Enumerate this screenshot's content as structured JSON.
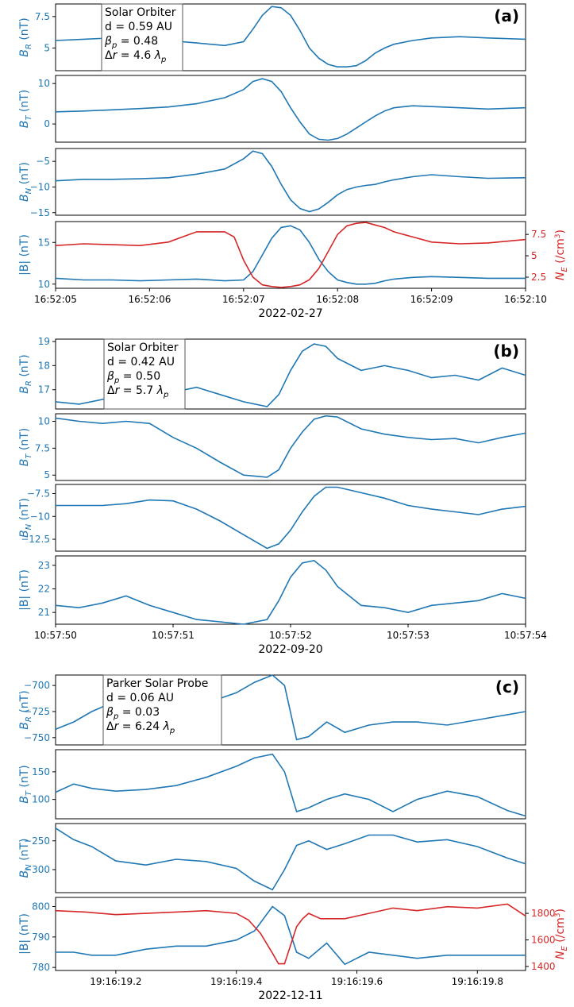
{
  "chart_data": [
    {
      "type": "line",
      "panel_label": "(a)",
      "date_label": "2022-02-27",
      "annotation": [
        "Solar Orbiter",
        "d = 0.59 AU",
        "βp = 0.48",
        "Δr = 4.6 λp"
      ],
      "x_ticks": [
        "16:52:05",
        "16:52:06",
        "16:52:07",
        "16:52:08",
        "16:52:09",
        "16:52:10"
      ],
      "x_range": [
        0,
        5
      ],
      "colors": {
        "B": "#1f77b4",
        "NE": "#d62728"
      },
      "subplots": [
        {
          "ylabel": "B_R (nT)",
          "yticks": [
            5.0,
            7.5
          ],
          "ylim": [
            3.2,
            8.5
          ],
          "series": {
            "x": [
              0,
              0.3,
              0.6,
              0.9,
              1.2,
              1.5,
              1.8,
              2.0,
              2.1,
              2.2,
              2.3,
              2.4,
              2.5,
              2.6,
              2.7,
              2.8,
              2.9,
              3.0,
              3.1,
              3.2,
              3.3,
              3.4,
              3.5,
              3.6,
              3.8,
              4.0,
              4.3,
              4.6,
              5.0
            ],
            "y": [
              5.6,
              5.7,
              5.8,
              5.8,
              5.6,
              5.4,
              5.2,
              5.5,
              6.5,
              7.6,
              8.3,
              8.2,
              7.6,
              6.4,
              5.0,
              4.2,
              3.7,
              3.5,
              3.5,
              3.6,
              4.0,
              4.6,
              5.0,
              5.3,
              5.6,
              5.8,
              5.9,
              5.8,
              5.7
            ]
          }
        },
        {
          "ylabel": "B_T (nT)",
          "yticks": [
            0,
            10
          ],
          "ylim": [
            -4.5,
            12
          ],
          "series": {
            "x": [
              0,
              0.3,
              0.6,
              0.9,
              1.2,
              1.5,
              1.8,
              2.0,
              2.1,
              2.2,
              2.3,
              2.4,
              2.5,
              2.6,
              2.7,
              2.8,
              2.9,
              3.0,
              3.1,
              3.2,
              3.3,
              3.4,
              3.5,
              3.6,
              3.8,
              4.0,
              4.3,
              4.6,
              5.0
            ],
            "y": [
              3.0,
              3.2,
              3.5,
              3.8,
              4.2,
              5.0,
              6.5,
              8.5,
              10.5,
              11.2,
              10.5,
              8.0,
              4.0,
              0.5,
              -2.5,
              -3.8,
              -4.0,
              -3.6,
              -2.5,
              -1.0,
              0.5,
              2.0,
              3.2,
              4.0,
              4.5,
              4.3,
              4.0,
              3.7,
              4.0
            ]
          }
        },
        {
          "ylabel": "B_N (nT)",
          "yticks": [
            -15,
            -10,
            -5
          ],
          "ylim": [
            -15.5,
            -2.5
          ],
          "series": {
            "x": [
              0,
              0.3,
              0.6,
              0.9,
              1.2,
              1.5,
              1.8,
              2.0,
              2.1,
              2.2,
              2.3,
              2.4,
              2.5,
              2.6,
              2.7,
              2.8,
              2.9,
              3.0,
              3.1,
              3.2,
              3.3,
              3.4,
              3.5,
              3.6,
              3.8,
              4.0,
              4.3,
              4.6,
              5.0
            ],
            "y": [
              -8.8,
              -8.5,
              -8.5,
              -8.4,
              -8.2,
              -7.5,
              -6.5,
              -4.5,
              -3.0,
              -3.5,
              -6.0,
              -9.5,
              -12.5,
              -14.2,
              -14.8,
              -14.3,
              -13.0,
              -11.5,
              -10.5,
              -10.0,
              -9.7,
              -9.5,
              -9.0,
              -8.6,
              -8.0,
              -7.6,
              -8.0,
              -8.3,
              -8.2
            ]
          }
        },
        {
          "ylabel": "|B| (nT)",
          "yticks": [
            10,
            15
          ],
          "ylim": [
            9.5,
            17.5
          ],
          "series": {
            "x": [
              0,
              0.3,
              0.6,
              0.9,
              1.2,
              1.5,
              1.8,
              2.0,
              2.1,
              2.2,
              2.3,
              2.4,
              2.5,
              2.6,
              2.7,
              2.8,
              2.9,
              3.0,
              3.1,
              3.2,
              3.3,
              3.4,
              3.5,
              3.6,
              3.8,
              4.0,
              4.3,
              4.6,
              5.0
            ],
            "y": [
              10.7,
              10.5,
              10.5,
              10.4,
              10.5,
              10.6,
              10.4,
              10.5,
              11.5,
              13.5,
              15.5,
              16.8,
              17.0,
              16.5,
              15.0,
              13.0,
              11.5,
              10.5,
              10.2,
              10.0,
              10.0,
              10.1,
              10.4,
              10.6,
              10.8,
              10.9,
              10.8,
              10.7,
              10.7
            ]
          },
          "right_axis": {
            "ylabel": "N_E (/cm³)",
            "yticks": [
              2.5,
              5.0,
              7.5
            ],
            "ylim": [
              1.2,
              9.0
            ],
            "series": {
              "x": [
                0,
                0.3,
                0.6,
                0.9,
                1.2,
                1.5,
                1.8,
                1.9,
                2.0,
                2.1,
                2.2,
                2.3,
                2.4,
                2.5,
                2.6,
                2.7,
                2.8,
                2.9,
                3.0,
                3.1,
                3.2,
                3.3,
                3.4,
                3.5,
                3.6,
                3.8,
                4.0,
                4.3,
                4.6,
                5.0
              ],
              "y": [
                6.2,
                6.4,
                6.3,
                6.2,
                6.6,
                7.8,
                7.8,
                7.2,
                4.5,
                2.5,
                1.6,
                1.4,
                1.3,
                1.4,
                1.6,
                2.2,
                3.5,
                5.5,
                7.5,
                8.5,
                8.8,
                8.9,
                8.6,
                8.3,
                7.8,
                7.2,
                6.6,
                6.4,
                6.5,
                6.9
              ]
            }
          }
        }
      ]
    },
    {
      "type": "line",
      "panel_label": "(b)",
      "date_label": "2022-09-20",
      "annotation": [
        "Solar Orbiter",
        "d = 0.42 AU",
        "βp = 0.50",
        "Δr = 5.7 λp"
      ],
      "x_ticks": [
        "10:57:50",
        "10:57:51",
        "10:57:52",
        "10:57:53",
        "10:57:54"
      ],
      "x_range": [
        0,
        4
      ],
      "colors": {
        "B": "#1f77b4"
      },
      "subplots": [
        {
          "ylabel": "B_R (nT)",
          "yticks": [
            17,
            18,
            19
          ],
          "ylim": [
            16.2,
            19.1
          ],
          "series": {
            "x": [
              0,
              0.2,
              0.4,
              0.6,
              0.8,
              1.0,
              1.2,
              1.4,
              1.6,
              1.8,
              1.9,
              2.0,
              2.1,
              2.2,
              2.3,
              2.4,
              2.6,
              2.8,
              3.0,
              3.2,
              3.4,
              3.6,
              3.8,
              4.0
            ],
            "y": [
              16.5,
              16.4,
              16.6,
              16.8,
              17.0,
              16.9,
              17.1,
              16.8,
              16.5,
              16.3,
              16.8,
              17.8,
              18.6,
              18.9,
              18.8,
              18.3,
              17.8,
              18.0,
              17.8,
              17.5,
              17.6,
              17.4,
              17.9,
              17.6
            ]
          }
        },
        {
          "ylabel": "B_T (nT)",
          "yticks": [
            5.0,
            7.5,
            10.0
          ],
          "ylim": [
            4.5,
            10.7
          ],
          "series": {
            "x": [
              0,
              0.2,
              0.4,
              0.6,
              0.8,
              1.0,
              1.2,
              1.4,
              1.6,
              1.8,
              1.9,
              2.0,
              2.1,
              2.2,
              2.3,
              2.4,
              2.6,
              2.8,
              3.0,
              3.2,
              3.4,
              3.6,
              3.8,
              4.0
            ],
            "y": [
              10.3,
              10.0,
              9.8,
              10.0,
              9.8,
              8.5,
              7.5,
              6.2,
              5.0,
              4.8,
              5.5,
              7.5,
              9.0,
              10.2,
              10.5,
              10.4,
              9.3,
              8.8,
              8.5,
              8.3,
              8.4,
              8.0,
              8.5,
              8.9
            ]
          }
        },
        {
          "ylabel": "B_N (nT)",
          "yticks": [
            -12.5,
            -10.0,
            -7.5
          ],
          "ylim": [
            -13.8,
            -6.5
          ],
          "series": {
            "x": [
              0,
              0.2,
              0.4,
              0.6,
              0.8,
              1.0,
              1.2,
              1.4,
              1.6,
              1.8,
              1.9,
              2.0,
              2.1,
              2.2,
              2.3,
              2.4,
              2.6,
              2.8,
              3.0,
              3.2,
              3.4,
              3.6,
              3.8,
              4.0
            ],
            "y": [
              -8.8,
              -8.8,
              -8.8,
              -8.6,
              -8.2,
              -8.3,
              -9.2,
              -10.5,
              -12.0,
              -13.5,
              -13.0,
              -11.5,
              -9.5,
              -7.8,
              -6.8,
              -6.8,
              -7.4,
              -8.0,
              -8.8,
              -9.2,
              -9.5,
              -9.8,
              -9.2,
              -8.9
            ]
          }
        },
        {
          "ylabel": "|B| (nT)",
          "yticks": [
            21,
            22,
            23
          ],
          "ylim": [
            20.5,
            23.4
          ],
          "series": {
            "x": [
              0,
              0.2,
              0.4,
              0.6,
              0.8,
              1.0,
              1.2,
              1.4,
              1.6,
              1.8,
              1.9,
              2.0,
              2.1,
              2.2,
              2.3,
              2.4,
              2.6,
              2.8,
              3.0,
              3.2,
              3.4,
              3.6,
              3.8,
              4.0
            ],
            "y": [
              21.3,
              21.2,
              21.4,
              21.7,
              21.3,
              21.0,
              20.7,
              20.6,
              20.5,
              20.7,
              21.5,
              22.5,
              23.1,
              23.2,
              22.8,
              22.1,
              21.3,
              21.2,
              21.0,
              21.3,
              21.4,
              21.5,
              21.8,
              21.6
            ]
          }
        }
      ]
    },
    {
      "type": "line",
      "panel_label": "(c)",
      "date_label": "2022-12-11",
      "annotation": [
        "Parker Solar Probe",
        "d = 0.06 AU",
        "βp = 0.03",
        "Δr = 6.24 λp"
      ],
      "x_ticks": [
        "19:16:19.2",
        "19:16:19.4",
        "19:16:19.6",
        "19:16:19.8"
      ],
      "x_tick_values": [
        0.1,
        0.3,
        0.5,
        0.7
      ],
      "x_range": [
        0,
        0.78
      ],
      "colors": {
        "B": "#1f77b4",
        "NE": "#d62728"
      },
      "subplots": [
        {
          "ylabel": "B_R (nT)",
          "yticks": [
            -750,
            -725,
            -700
          ],
          "ylim": [
            -757,
            -690
          ],
          "series": {
            "x": [
              0,
              0.03,
              0.06,
              0.1,
              0.15,
              0.2,
              0.25,
              0.3,
              0.33,
              0.36,
              0.38,
              0.4,
              0.42,
              0.45,
              0.48,
              0.52,
              0.56,
              0.6,
              0.65,
              0.7,
              0.75,
              0.78
            ],
            "y": [
              -742,
              -735,
              -725,
              -715,
              -718,
              -722,
              -717,
              -707,
              -697,
              -690,
              -700,
              -752,
              -749,
              -735,
              -745,
              -738,
              -735,
              -735,
              -738,
              -733,
              -728,
              -725
            ]
          }
        },
        {
          "ylabel": "B_T (nT)",
          "yticks": [
            100,
            150
          ],
          "ylim": [
            65,
            190
          ],
          "series": {
            "x": [
              0,
              0.03,
              0.06,
              0.1,
              0.15,
              0.2,
              0.25,
              0.3,
              0.33,
              0.36,
              0.38,
              0.4,
              0.42,
              0.45,
              0.48,
              0.52,
              0.56,
              0.6,
              0.65,
              0.7,
              0.75,
              0.78
            ],
            "y": [
              113,
              128,
              120,
              115,
              118,
              125,
              140,
              160,
              175,
              182,
              150,
              78,
              85,
              100,
              110,
              100,
              78,
              100,
              115,
              105,
              80,
              70
            ]
          }
        },
        {
          "ylabel": "B_N (nT)",
          "yticks": [
            -300,
            -250
          ],
          "ylim": [
            -340,
            -220
          ],
          "series": {
            "x": [
              0,
              0.03,
              0.06,
              0.1,
              0.15,
              0.2,
              0.25,
              0.3,
              0.33,
              0.36,
              0.38,
              0.4,
              0.42,
              0.45,
              0.48,
              0.52,
              0.56,
              0.6,
              0.65,
              0.7,
              0.75,
              0.78
            ],
            "y": [
              -228,
              -248,
              -260,
              -285,
              -292,
              -282,
              -286,
              -298,
              -320,
              -335,
              -300,
              -258,
              -250,
              -265,
              -255,
              -240,
              -240,
              -252,
              -248,
              -260,
              -280,
              -290
            ]
          }
        },
        {
          "ylabel": "|B| (nT)",
          "yticks": [
            780,
            790,
            800
          ],
          "ylim": [
            779,
            803
          ],
          "series": {
            "x": [
              0,
              0.03,
              0.06,
              0.1,
              0.15,
              0.2,
              0.25,
              0.3,
              0.33,
              0.36,
              0.38,
              0.4,
              0.42,
              0.45,
              0.48,
              0.52,
              0.56,
              0.6,
              0.65,
              0.7,
              0.75,
              0.78
            ],
            "y": [
              785,
              785,
              784,
              784,
              786,
              787,
              787,
              789,
              792,
              800,
              797,
              785,
              783,
              788,
              781,
              785,
              784,
              783,
              784,
              784,
              784,
              784
            ]
          },
          "right_axis": {
            "ylabel": "N_E (/cm³)",
            "yticks": [
              1400,
              1600,
              1800
            ],
            "ylim": [
              1370,
              1920
            ],
            "series": {
              "x": [
                0,
                0.05,
                0.1,
                0.15,
                0.2,
                0.25,
                0.3,
                0.32,
                0.34,
                0.36,
                0.37,
                0.38,
                0.39,
                0.4,
                0.41,
                0.42,
                0.44,
                0.48,
                0.52,
                0.56,
                0.6,
                0.65,
                0.7,
                0.75,
                0.78
              ],
              "y": [
                1820,
                1810,
                1790,
                1800,
                1810,
                1820,
                1800,
                1750,
                1650,
                1500,
                1420,
                1420,
                1560,
                1700,
                1760,
                1800,
                1760,
                1760,
                1800,
                1840,
                1820,
                1850,
                1840,
                1870,
                1780
              ]
            }
          }
        }
      ]
    }
  ]
}
